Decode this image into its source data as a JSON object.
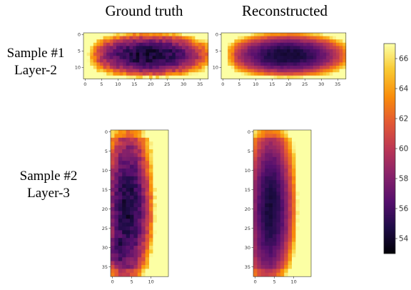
{
  "column_titles": [
    "Ground truth",
    "Reconstructed"
  ],
  "row_labels": [
    {
      "sample": "Sample #1",
      "layer": "Layer-2"
    },
    {
      "sample": "Sample #2",
      "layer": "Layer-3"
    }
  ],
  "colormap": "inferno",
  "chart_data": {
    "type": "heatmap",
    "panels": [
      {
        "id": "s1-gt",
        "sample": "Sample #1",
        "layer": "Layer-2",
        "kind": "Ground truth",
        "cols": 38,
        "rows": 14,
        "xticks": [
          0,
          5,
          10,
          15,
          20,
          25,
          30,
          35
        ],
        "yticks": [
          0,
          5,
          10
        ],
        "pattern": "s1",
        "variant": 0
      },
      {
        "id": "s1-rc",
        "sample": "Sample #1",
        "layer": "Layer-2",
        "kind": "Reconstructed",
        "cols": 38,
        "rows": 14,
        "xticks": [
          0,
          5,
          10,
          15,
          20,
          25,
          30,
          35
        ],
        "yticks": [
          0,
          5,
          10
        ],
        "pattern": "s1",
        "variant": 1
      },
      {
        "id": "s2-gt",
        "sample": "Sample #2",
        "layer": "Layer-3",
        "kind": "Ground truth",
        "cols": 15,
        "rows": 38,
        "xticks": [
          0,
          5,
          10
        ],
        "yticks": [
          0,
          5,
          10,
          15,
          20,
          25,
          30,
          35
        ],
        "pattern": "s2",
        "variant": 0
      },
      {
        "id": "s2-rc",
        "sample": "Sample #2",
        "layer": "Layer-3",
        "kind": "Reconstructed",
        "cols": 15,
        "rows": 38,
        "xticks": [
          0,
          5,
          10
        ],
        "yticks": [
          0,
          5,
          10,
          15,
          20,
          25,
          30,
          35
        ],
        "pattern": "s2",
        "variant": 1
      }
    ],
    "colorbar": {
      "min": 53,
      "max": 67,
      "ticks": [
        54,
        56,
        58,
        60,
        62,
        64,
        66
      ]
    }
  }
}
